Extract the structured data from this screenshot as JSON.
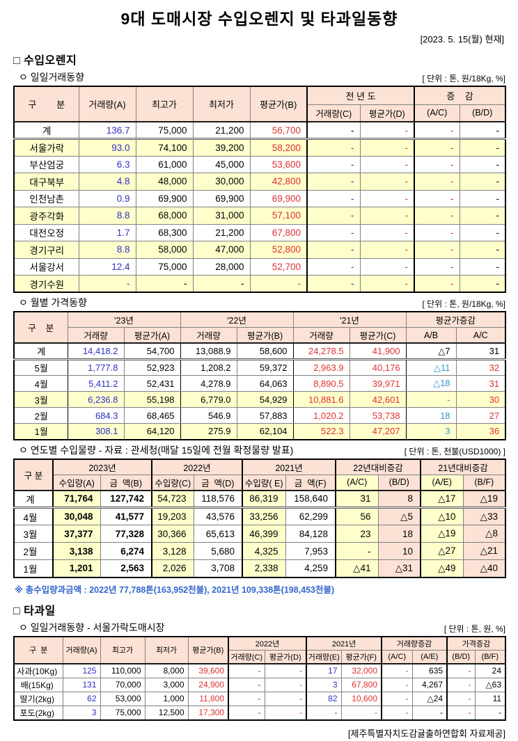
{
  "title": "9대 도매시장 수입오렌지 및 타과일동향",
  "date_note": "[2023. 5. 15(월) 현재]",
  "section_orange": {
    "heading": "□ 수입오렌지"
  },
  "section_fruit": {
    "heading": "□ 타과일"
  },
  "footer": "[제주특별자치도감귤출하연합회 자료제공]",
  "tables": {
    "daily": {
      "subtitle": "ㅇ 일일거래동향",
      "unit": "[ 단위 : 톤, 원/18Kg, %]",
      "h": {
        "gubun": "구        분",
        "qty_a": "거래량(A)",
        "high": "최고가",
        "low": "최저가",
        "avg_b": "평균가(B)",
        "prev_year": "전 년 도",
        "qty_c": "거래량(C)",
        "avg_d": "평균가(D)",
        "change": "증    감",
        "ac": "(A/C)",
        "bd": "(B/D)"
      },
      "rows": [
        [
          "계",
          "136.7",
          "75,000",
          "21,200",
          "56,700",
          "-",
          "-",
          "-",
          "-"
        ],
        [
          "서울가락",
          "93.0",
          "74,100",
          "39,200",
          "58,200",
          "-",
          "-",
          "-",
          "-"
        ],
        [
          "부산엄궁",
          "6.3",
          "61,000",
          "45,000",
          "53,600",
          "-",
          "-",
          "-",
          "-"
        ],
        [
          "대구북부",
          "4.8",
          "48,000",
          "30,000",
          "42,800",
          "-",
          "-",
          "-",
          "-"
        ],
        [
          "인천남촌",
          "0.9",
          "69,900",
          "69,900",
          "69,900",
          "-",
          "-",
          "-",
          "-"
        ],
        [
          "광주각화",
          "8.8",
          "68,000",
          "31,000",
          "57,100",
          "-",
          "-",
          "-",
          "-"
        ],
        [
          "대전오정",
          "1.7",
          "68,300",
          "21,200",
          "67,800",
          "-",
          "-",
          "-",
          "-"
        ],
        [
          "경기구리",
          "8.8",
          "58,000",
          "47,000",
          "52,800",
          "-",
          "-",
          "-",
          "-"
        ],
        [
          "서울강서",
          "12.4",
          "75,000",
          "28,000",
          "52,700",
          "-",
          "-",
          "-",
          "-"
        ],
        [
          "경기수원",
          "-",
          "-",
          "-",
          "-",
          "-",
          "-",
          "-",
          "-"
        ]
      ]
    },
    "monthly": {
      "subtitle": "ㅇ 월별 가격동향",
      "unit": "[ 단위 : 톤, 원/18Kg, %]",
      "h": {
        "gubun": "구    분",
        "y23": "'23년",
        "y22": "'22년",
        "y21": "'21년",
        "avg_change": "평균가증감",
        "qty": "거래량",
        "avg_a": "평균가(A)",
        "avg_b": "평균가(B)",
        "avg_c": "평균가(C)",
        "ab": "A/B",
        "ac": "A/C"
      },
      "rows": [
        [
          "계",
          "14,418.2",
          "54,700",
          "13,088.9",
          "58,600",
          "24,278.5",
          "41,900",
          "△7",
          "31"
        ],
        [
          "5월",
          "1,777.8",
          "52,923",
          "1,208.2",
          "59,372",
          "2,963.9",
          "40,176",
          "△11",
          "32"
        ],
        [
          "4월",
          "5,411.2",
          "52,431",
          "4,278.9",
          "64,063",
          "8,890.5",
          "39,971",
          "△18",
          "31"
        ],
        [
          "3월",
          "6,236.8",
          "55,198",
          "6,779.0",
          "54,929",
          "10,881.6",
          "42,601",
          "-",
          "30"
        ],
        [
          "2월",
          "684.3",
          "68,465",
          "546.9",
          "57,883",
          "1,020.2",
          "53,738",
          "18",
          "27"
        ],
        [
          "1월",
          "308.1",
          "64,120",
          "275.9",
          "62,104",
          "522.3",
          "47,207",
          "3",
          "36"
        ]
      ]
    },
    "yearly": {
      "subtitle": "ㅇ 연도별 수입물량 - 자료 : 관세청(매달 15일에 전월 확정물량 발표)",
      "unit": "[ 단위 : 톤, 천불(USD1000) ]",
      "h": {
        "gubun": "구 분",
        "y2023": "2023년",
        "y2022": "2022년",
        "y2021": "2021년",
        "vs22": "22년대비증감",
        "vs21": "21년대비증감",
        "imp_a": "수입량(A)",
        "amt_b": "금  액(B)",
        "imp_c": "수입량(C)",
        "amt_d": "금  액(D)",
        "imp_e": "수입량( E)",
        "amt_f": "금  액(F)",
        "ac": "(A/C)",
        "bd": "(B/D)",
        "ae": "(A/E)",
        "bf": "(B/F)"
      },
      "rows": [
        [
          "계",
          "71,764",
          "127,742",
          "54,723",
          "118,576",
          "86,319",
          "158,640",
          "31",
          "8",
          "△17",
          "△19"
        ],
        [
          "4월",
          "30,048",
          "41,577",
          "19,203",
          "43,576",
          "33,256",
          "62,299",
          "56",
          "△5",
          "△10",
          "△33"
        ],
        [
          "3월",
          "37,377",
          "77,328",
          "30,366",
          "65,613",
          "46,399",
          "84,128",
          "23",
          "18",
          "△19",
          "△8"
        ],
        [
          "2월",
          "3,138",
          "6,274",
          "3,128",
          "5,680",
          "4,325",
          "7,953",
          "-",
          "10",
          "△27",
          "△21"
        ],
        [
          "1월",
          "1,201",
          "2,563",
          "2,026",
          "3,708",
          "2,338",
          "4,259",
          "△41",
          "△31",
          "△49",
          "△40"
        ]
      ],
      "footnote": "※ 총수입량과금액 : 2022년 77,788톤(163,952천불),  2021년 109,338톤(198,453천불)"
    },
    "fruit": {
      "subtitle": "ㅇ 일일거래동향 - 서울가락도매시장",
      "unit": "[ 단위 : 톤, 원, %]",
      "h": {
        "gubun": "구  분",
        "qty_a": "거래량(A)",
        "high": "최고가",
        "low": "최저가",
        "avg_b": "평균가(B)",
        "y2022": "2022년",
        "y2021": "2021년",
        "qty_change": "거래량증감",
        "price_change": "가격증감",
        "qty_c": "거래량(C)",
        "avg_d": "평균가(D)",
        "qty_e": "거래량(E)",
        "avg_f": "평균가(F)",
        "ac": "(A/C)",
        "ae": "(A/E)",
        "bd": "(B/D)",
        "bf": "(B/F)"
      },
      "rows": [
        [
          "사과(10Kg)",
          "125",
          "110,000",
          "8,000",
          "39,600",
          "-",
          "-",
          "17",
          "32,000",
          "-",
          "635",
          "-",
          "24"
        ],
        [
          "배(15Kg)",
          "131",
          "70,000",
          "3,000",
          "24,900",
          "-",
          "-",
          "3",
          "67,800",
          "-",
          "4,267",
          "-",
          "△63"
        ],
        [
          "딸기(2kg)",
          "62",
          "53,000",
          "1,000",
          "11,800",
          "-",
          "-",
          "82",
          "10,600",
          "-",
          "△24",
          "-",
          "11"
        ],
        [
          "포도(2kg)",
          "3",
          "75,000",
          "12,500",
          "17,300",
          "-",
          "-",
          "-",
          "-",
          "-",
          "-",
          "-",
          "-"
        ]
      ]
    }
  }
}
